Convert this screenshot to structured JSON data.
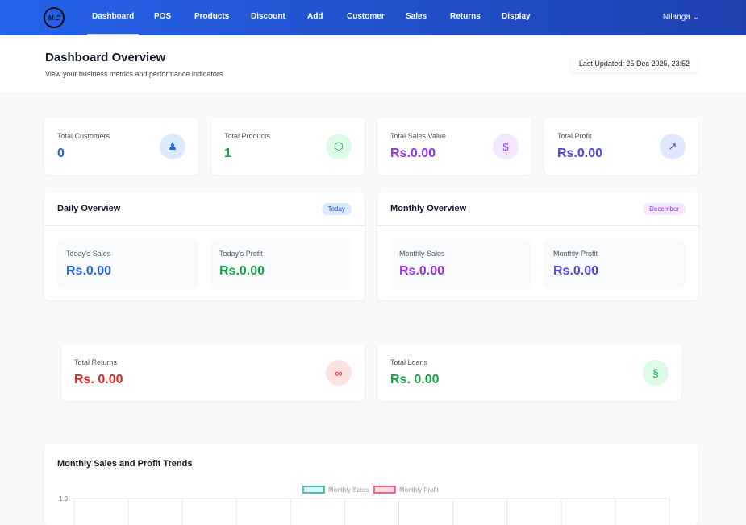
{
  "nav": {
    "logo": "M.C",
    "items": [
      "Dashboard",
      "POS",
      "Products",
      "Discount",
      "Add",
      "Customer",
      "Sales",
      "Returns",
      "Display"
    ],
    "active": "Dashboard",
    "user": "Nilanga"
  },
  "header": {
    "title": "Dashboard Overview",
    "subtitle": "View your business metrics and performance indicators",
    "last_updated": "Last Updated: 25 Dec 2025, 23:52"
  },
  "stats": [
    {
      "label": "Total Customers",
      "value": "0",
      "icon": "users-icon",
      "color": "#2563eb"
    },
    {
      "label": "Total Products",
      "value": "1",
      "icon": "box-icon",
      "color": "#16a34a"
    },
    {
      "label": "Total Sales Value",
      "value": "Rs.0.00",
      "icon": "dollar-icon",
      "color": "#9333ea"
    },
    {
      "label": "Total Profit",
      "value": "Rs.0.00",
      "icon": "trending-up-icon",
      "color": "#4f46e5"
    }
  ],
  "daily": {
    "title": "Daily Overview",
    "badge": "Today",
    "sales_label": "Today's Sales",
    "sales": "Rs.0.00",
    "profit_label": "Today's Profit",
    "profit": "Rs.0.00"
  },
  "monthly": {
    "title": "Monthly Overview",
    "badge": "December",
    "sales_label": "Monthly Sales",
    "sales": "Rs.0.00",
    "profit_label": "Monthly Profit",
    "profit": "Rs.0.00"
  },
  "returns": {
    "label": "Total Returns",
    "value": "Rs. 0.00",
    "icon": "returns-icon"
  },
  "loans": {
    "label": "Total Loans",
    "value": "Rs. 0.00",
    "icon": "loan-icon"
  },
  "chart_data": {
    "type": "line",
    "title": "Monthly Sales and Profit Trends",
    "legend_placement": "top",
    "series": [
      {
        "name": "Monthly Sales",
        "color": "#4bc0c0",
        "values": []
      },
      {
        "name": "Monthly Profit",
        "color": "#ff6384",
        "values": []
      }
    ],
    "yticks": [
      "1.0"
    ],
    "grid": true
  }
}
